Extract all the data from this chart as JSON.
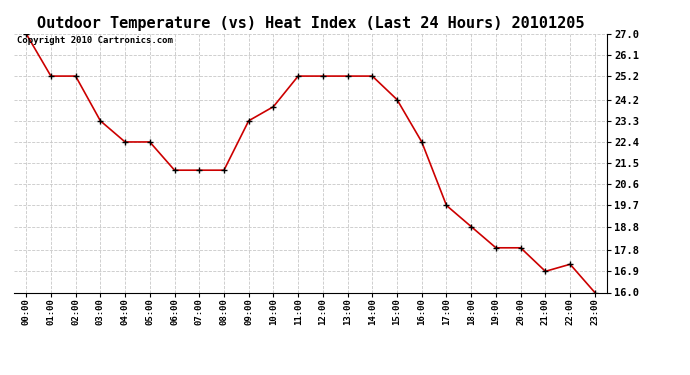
{
  "title": "Outdoor Temperature (vs) Heat Index (Last 24 Hours) 20101205",
  "copyright": "Copyright 2010 Cartronics.com",
  "x_labels": [
    "00:00",
    "01:00",
    "02:00",
    "03:00",
    "04:00",
    "05:00",
    "06:00",
    "07:00",
    "08:00",
    "09:00",
    "10:00",
    "11:00",
    "12:00",
    "13:00",
    "14:00",
    "15:00",
    "16:00",
    "17:00",
    "18:00",
    "19:00",
    "20:00",
    "21:00",
    "22:00",
    "23:00"
  ],
  "y_values": [
    27.0,
    25.2,
    25.2,
    23.3,
    22.4,
    22.4,
    21.2,
    21.2,
    21.2,
    23.3,
    23.9,
    25.2,
    25.2,
    25.2,
    25.2,
    24.2,
    22.4,
    19.7,
    18.8,
    17.9,
    17.9,
    16.9,
    17.2,
    16.0
  ],
  "ylim_min": 16.0,
  "ylim_max": 27.0,
  "y_ticks": [
    16.0,
    16.9,
    17.8,
    18.8,
    19.7,
    20.6,
    21.5,
    22.4,
    23.3,
    24.2,
    25.2,
    26.1,
    27.0
  ],
  "line_color": "#cc0000",
  "marker_color": "#000000",
  "bg_color": "#ffffff",
  "grid_color": "#c8c8c8",
  "title_fontsize": 11,
  "copyright_fontsize": 6.5
}
